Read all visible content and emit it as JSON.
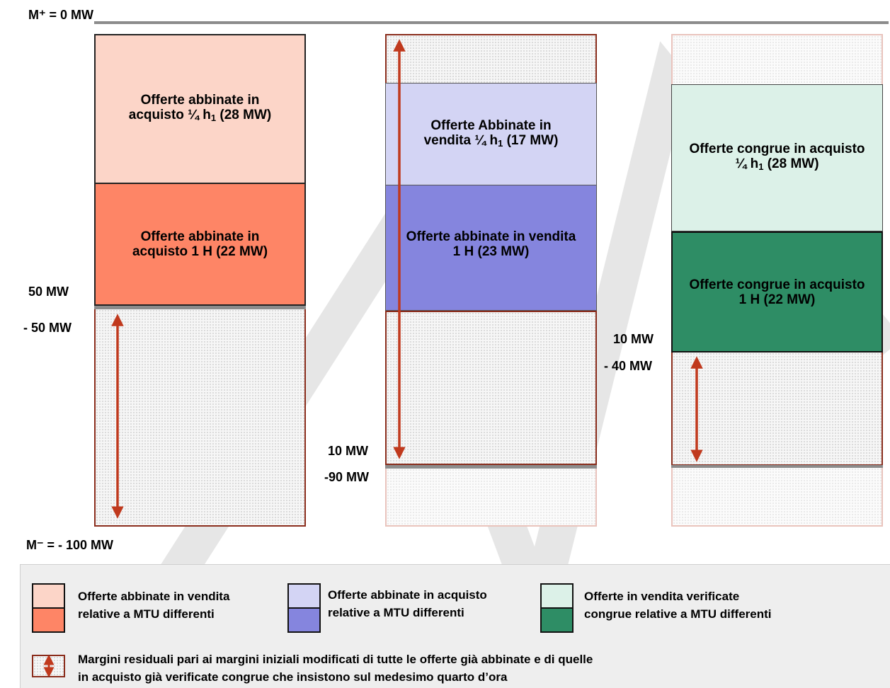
{
  "labels": {
    "m_plus": "M⁺ = 0 MW",
    "m_minus": "M⁻ = - 100 MW",
    "col1_plus": "50 MW",
    "col1_minus": "- 50 MW",
    "col2_plus": "10 MW",
    "col2_minus": "-90 MW",
    "col3_plus": "10 MW",
    "col3_minus": "- 40 MW"
  },
  "blocks": {
    "c1_top": {
      "line1": "Offerte abbinate in",
      "line2a": "acquisto ¼ h",
      "sub": "1",
      "line2b": " (28 MW)"
    },
    "c1_mid": {
      "line1": "Offerte abbinate in",
      "line2": "acquisto  1 H (22 MW)"
    },
    "c2_top": {
      "line1": "Offerte Abbinate in",
      "line2a": "vendita ¼ h",
      "sub": "1",
      "line2b": " (17 MW)"
    },
    "c2_mid": {
      "line1": "Offerte abbinate in vendita",
      "line2": "1 H (23 MW)"
    },
    "c3_top": {
      "line1": "Offerte congrue in acquisto",
      "line2a": "¼ h",
      "sub": "1",
      "line2b": " (28 MW)"
    },
    "c3_mid": {
      "line1": "Offerte congrue in acquisto",
      "line2": "1 H (22 MW)"
    }
  },
  "legend": {
    "item1": {
      "line1": "Offerte abbinate in vendita",
      "line2": "relative a MTU differenti"
    },
    "item2": {
      "line1": "Offerte abbinate in acquisto",
      "line2": "relative a MTU differenti"
    },
    "item3": {
      "line1": "Offerte in vendita verificate",
      "line2": "congrue relative a MTU differenti"
    },
    "item4": {
      "line1": "Margini residuali pari ai margini iniziali modificati di tutte le offerte già abbinate e di quelle",
      "line2": "in acquisto già verificate congrue che insistono sul medesimo quarto d’ora"
    }
  },
  "colors": {
    "salmon_light": "#fcd5c8",
    "salmon": "#fe8566",
    "lavender_light": "#d3d4f4",
    "lavender": "#8585de",
    "mint_light": "#dcf1e8",
    "green": "#2e8d65",
    "arrow": "#c0391d",
    "frame": "#8a2d1c"
  }
}
